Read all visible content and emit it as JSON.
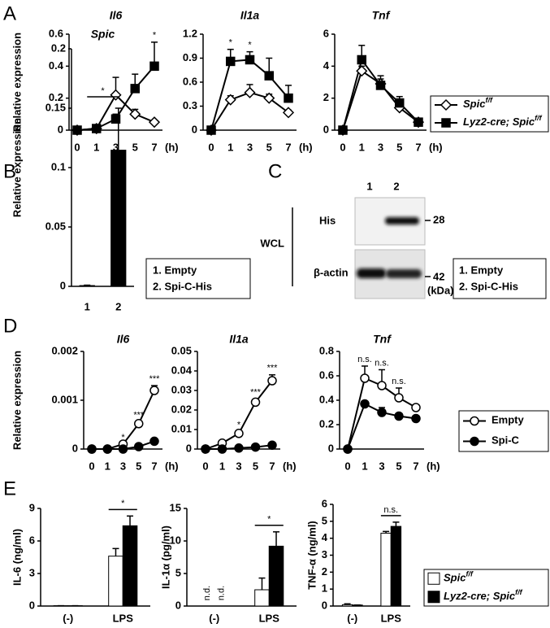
{
  "panel_labels": [
    "A",
    "B",
    "C",
    "D",
    "E"
  ],
  "chart_data": [
    {
      "type": "line",
      "title": "Il6",
      "ylabel": "Relative expression",
      "x_unit": "(h)",
      "categories": [
        "0",
        "1",
        "3",
        "5",
        "7"
      ],
      "ylim": [
        0,
        0.6
      ],
      "yticks": [
        0,
        0.2,
        0.4,
        0.6
      ],
      "series": [
        {
          "color": "#ffffff",
          "marker": "diamond",
          "values": [
            0,
            0.01,
            0.22,
            0.1,
            0.05
          ],
          "errors": [
            0,
            0,
            0.11,
            0.03,
            0
          ]
        },
        {
          "color": "#000000",
          "marker": "square",
          "values": [
            0,
            0.01,
            0.07,
            0.26,
            0.4
          ],
          "errors": [
            0,
            0,
            0.03,
            0.09,
            0.15
          ]
        }
      ],
      "annotations": [
        {
          "category_index": 4,
          "text": "*"
        }
      ]
    },
    {
      "type": "line",
      "title": "Il1a",
      "x_unit": "(h)",
      "categories": [
        "0",
        "1",
        "3",
        "5",
        "7"
      ],
      "ylim": [
        0,
        1.2
      ],
      "yticks": [
        0,
        0.3,
        0.6,
        0.9,
        1.2
      ],
      "series": [
        {
          "color": "#ffffff",
          "marker": "diamond",
          "values": [
            0,
            0.38,
            0.47,
            0.4,
            0.22
          ],
          "errors": [
            0,
            0.05,
            0.1,
            0.05,
            0.03
          ]
        },
        {
          "color": "#000000",
          "marker": "square",
          "values": [
            0,
            0.86,
            0.88,
            0.68,
            0.4
          ],
          "errors": [
            0,
            0.15,
            0.1,
            0.22,
            0.16
          ]
        }
      ],
      "annotations": [
        {
          "category_index": 1,
          "text": "*"
        },
        {
          "category_index": 2,
          "text": "*"
        }
      ]
    },
    {
      "type": "line",
      "title": "Tnf",
      "x_unit": "(h)",
      "categories": [
        "0",
        "1",
        "3",
        "5",
        "7"
      ],
      "ylim": [
        0,
        6
      ],
      "yticks": [
        0,
        2,
        4,
        6
      ],
      "series": [
        {
          "name": "Spic",
          "name_superscript": "f/f",
          "color": "#ffffff",
          "marker": "diamond",
          "values": [
            0,
            3.7,
            2.9,
            1.4,
            0.5
          ],
          "errors": [
            0,
            0.3,
            0.3,
            0.3,
            0.1
          ]
        },
        {
          "name": "Lyz2-cre; Spic",
          "name_superscript": "f/f",
          "color": "#000000",
          "marker": "square",
          "values": [
            0,
            4.4,
            2.8,
            1.7,
            0.5
          ],
          "errors": [
            0,
            0.9,
            0.6,
            0.4,
            0.2
          ]
        }
      ]
    },
    {
      "type": "bar",
      "title": "Spic",
      "ylabel": "Relative expression",
      "categories": [
        "1",
        "2"
      ],
      "values": [
        0.001,
        0.115
      ],
      "errors": [
        0,
        0.035
      ],
      "color": "#000000",
      "ylim": [
        0,
        0.2
      ],
      "yticks": [
        0,
        0.05,
        0.1,
        0.15,
        0.2
      ],
      "bracket": "*",
      "note": [
        "1. Empty",
        "2. Spi-C-His"
      ]
    },
    {
      "type": "line",
      "title": "Il6",
      "ylabel": "Relative expression",
      "x_unit": "(h)",
      "categories": [
        "0",
        "1",
        "3",
        "5",
        "7"
      ],
      "ylim": [
        0,
        0.002
      ],
      "yticks": [
        0,
        0.001,
        0.002
      ],
      "series": [
        {
          "color": "#ffffff",
          "marker": "circle",
          "values": [
            0,
            0,
            0.0001,
            0.00052,
            0.0012
          ],
          "errors": [
            0,
            0,
            0,
            4e-05,
            0.0001
          ]
        },
        {
          "color": "#000000",
          "marker": "circle",
          "values": [
            0,
            0,
            0,
            5e-05,
            0.00016
          ],
          "errors": [
            0,
            0,
            0,
            0,
            0
          ]
        }
      ],
      "annotations": [
        {
          "category_index": 2,
          "text": "*"
        },
        {
          "category_index": 3,
          "text": "***"
        },
        {
          "category_index": 4,
          "text": "***"
        }
      ]
    },
    {
      "type": "line",
      "title": "Il1a",
      "x_unit": "(h)",
      "categories": [
        "0",
        "1",
        "3",
        "5",
        "7"
      ],
      "ylim": [
        0,
        0.05
      ],
      "yticks": [
        0,
        0.01,
        0.02,
        0.03,
        0.04,
        0.05
      ],
      "series": [
        {
          "color": "#ffffff",
          "marker": "circle",
          "values": [
            0,
            0.003,
            0.008,
            0.024,
            0.035
          ],
          "errors": [
            0,
            0.0005,
            0.001,
            0.0015,
            0.003
          ]
        },
        {
          "color": "#000000",
          "marker": "circle",
          "values": [
            0,
            0,
            0.0005,
            0.001,
            0.002
          ],
          "errors": [
            0,
            0,
            0,
            0,
            0
          ]
        }
      ],
      "annotations": [
        {
          "category_index": 2,
          "text": "*"
        },
        {
          "category_index": 3,
          "text": "***"
        },
        {
          "category_index": 4,
          "text": "***"
        }
      ]
    },
    {
      "type": "line",
      "title": "Tnf",
      "x_unit": "(h)",
      "categories": [
        "0",
        "1",
        "3",
        "5",
        "7"
      ],
      "ylim": [
        0,
        0.8
      ],
      "yticks": [
        0,
        0.2,
        0.4,
        0.6,
        0.8
      ],
      "series": [
        {
          "name": "Empty",
          "color": "#ffffff",
          "marker": "circle",
          "values": [
            0,
            0.58,
            0.52,
            0.42,
            0.34
          ],
          "errors": [
            0,
            0.1,
            0.13,
            0.08,
            0.02
          ]
        },
        {
          "name": "Spi-C",
          "color": "#000000",
          "marker": "circle",
          "values": [
            0,
            0.37,
            0.3,
            0.27,
            0.25
          ],
          "errors": [
            0,
            0.02,
            0.04,
            0.02,
            0.01
          ]
        }
      ],
      "annotations": [
        {
          "category_index": 1,
          "text": "n.s."
        },
        {
          "category_index": 2,
          "text": "n.s."
        },
        {
          "category_index": 3,
          "text": "n.s."
        }
      ]
    },
    {
      "type": "grouped_bar",
      "ylabel": "IL-6 (ng/ml)",
      "categories": [
        "(-)",
        "LPS"
      ],
      "ylim": [
        0,
        9
      ],
      "yticks": [
        0,
        3,
        6,
        9
      ],
      "series": [
        {
          "color": "#ffffff",
          "values": [
            0.03,
            4.6
          ],
          "errors": [
            0,
            0.7
          ]
        },
        {
          "color": "#000000",
          "values": [
            0.03,
            7.4
          ],
          "errors": [
            0,
            0.9
          ]
        }
      ],
      "annotations": [
        {
          "category_index": 1,
          "text": "*"
        }
      ]
    },
    {
      "type": "grouped_bar",
      "ylabel": "IL-1α (pg/ml)",
      "categories": [
        "(-)",
        "LPS"
      ],
      "ylim": [
        0,
        15
      ],
      "yticks": [
        0,
        5,
        10,
        15
      ],
      "series": [
        {
          "color": "#ffffff",
          "values": [
            null,
            2.5
          ],
          "value_labels": [
            "n.d.",
            null
          ],
          "errors": [
            null,
            1.8
          ]
        },
        {
          "color": "#000000",
          "values": [
            null,
            9.2
          ],
          "value_labels": [
            "n.d.",
            null
          ],
          "errors": [
            null,
            2.2
          ]
        }
      ],
      "annotations": [
        {
          "category_index": 1,
          "text": "*"
        }
      ]
    },
    {
      "type": "grouped_bar",
      "ylabel": "TNF-α (ng/ml)",
      "categories": [
        "(-)",
        "LPS"
      ],
      "ylim": [
        0,
        6
      ],
      "yticks": [
        0,
        1,
        2,
        3,
        4,
        5,
        6
      ],
      "series": [
        {
          "name": "Spic",
          "name_superscript": "f/f",
          "color": "#ffffff",
          "values": [
            0.08,
            4.3
          ],
          "errors": [
            0.05,
            0.1
          ]
        },
        {
          "name": "Lyz2-cre; Spic",
          "name_superscript": "f/f",
          "color": "#000000",
          "values": [
            0.06,
            4.7
          ],
          "errors": [
            0,
            0.25
          ]
        }
      ],
      "annotations": [
        {
          "category_index": 1,
          "text": "n.s."
        }
      ]
    }
  ],
  "blot": {
    "lanes": [
      "1",
      "2"
    ],
    "group": "WCL",
    "rows": [
      {
        "label": "His",
        "size": "28"
      },
      {
        "label": "β-actin",
        "size": "42"
      }
    ],
    "unit": "(kDa)",
    "note": [
      "1. Empty",
      "2. Spi-C-His"
    ]
  }
}
